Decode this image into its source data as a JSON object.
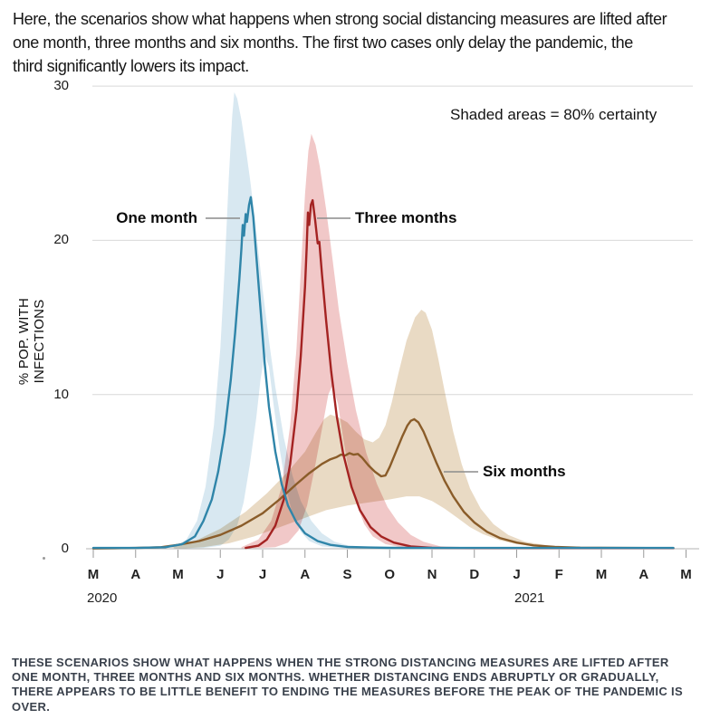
{
  "header": {
    "intro_lines": [
      "Here, the scenarios show what happens when strong social distancing measures are lifted after",
      "one month, three months and six months. The first two cases only delay the pandemic, the",
      "third significantly lowers its impact."
    ]
  },
  "chart_data": {
    "type": "line",
    "title": "",
    "xlabel": "",
    "ylabel": "% POP. WITH INFECTIONS",
    "note": "Shaded areas = 80% certainty",
    "grid": "horizontal",
    "legend": "inline-annotations",
    "ylim": [
      0,
      30
    ],
    "yticks": [
      0,
      10,
      20,
      30
    ],
    "x_unit": "months since March 2020",
    "x_axis": {
      "months": [
        "M",
        "A",
        "M",
        "J",
        "J",
        "A",
        "S",
        "O",
        "N",
        "D",
        "J",
        "F",
        "M",
        "A",
        "M"
      ],
      "years": [
        {
          "label": "2020",
          "month_index": 0
        },
        {
          "label": "2021",
          "month_index": 10
        }
      ]
    },
    "series": [
      {
        "id": "one-month",
        "label": "One month",
        "color": "#2f85a9",
        "fill": "#d8e8f1",
        "peak": {
          "x": 3.72,
          "y": 22.8
        },
        "line": [
          [
            0,
            0.05
          ],
          [
            1,
            0.05
          ],
          [
            1.7,
            0.1
          ],
          [
            2.1,
            0.3
          ],
          [
            2.4,
            0.8
          ],
          [
            2.6,
            1.8
          ],
          [
            2.8,
            3.2
          ],
          [
            2.95,
            5
          ],
          [
            3.1,
            7.5
          ],
          [
            3.25,
            11
          ],
          [
            3.35,
            14
          ],
          [
            3.45,
            17.5
          ],
          [
            3.5,
            19.5
          ],
          [
            3.53,
            21
          ],
          [
            3.56,
            20.3
          ],
          [
            3.6,
            21.7
          ],
          [
            3.63,
            21.2
          ],
          [
            3.68,
            22.3
          ],
          [
            3.72,
            22.8
          ],
          [
            3.78,
            21.5
          ],
          [
            3.85,
            19
          ],
          [
            3.95,
            15.5
          ],
          [
            4.05,
            12
          ],
          [
            4.15,
            9.2
          ],
          [
            4.3,
            6.3
          ],
          [
            4.45,
            4.2
          ],
          [
            4.6,
            2.8
          ],
          [
            4.8,
            1.7
          ],
          [
            5,
            1
          ],
          [
            5.3,
            0.5
          ],
          [
            5.6,
            0.25
          ],
          [
            6,
            0.12
          ],
          [
            6.5,
            0.08
          ],
          [
            7,
            0.06
          ],
          [
            9,
            0.05
          ],
          [
            11,
            0.05
          ],
          [
            13.7,
            0.05
          ]
        ],
        "band_upper": [
          [
            1.9,
            0.1
          ],
          [
            2.2,
            0.6
          ],
          [
            2.45,
            1.8
          ],
          [
            2.65,
            4
          ],
          [
            2.85,
            8
          ],
          [
            3,
            13
          ],
          [
            3.1,
            18
          ],
          [
            3.2,
            24
          ],
          [
            3.28,
            28
          ],
          [
            3.33,
            29.6
          ],
          [
            3.4,
            29.2
          ],
          [
            3.5,
            27.8
          ],
          [
            3.6,
            26
          ],
          [
            3.7,
            24
          ],
          [
            3.8,
            21.8
          ],
          [
            3.9,
            19.3
          ],
          [
            4,
            16.8
          ],
          [
            4.15,
            13.5
          ],
          [
            4.3,
            10.5
          ],
          [
            4.5,
            7.2
          ],
          [
            4.7,
            4.8
          ],
          [
            4.9,
            3.1
          ],
          [
            5.15,
            1.8
          ],
          [
            5.4,
            1
          ],
          [
            5.7,
            0.45
          ],
          [
            6.1,
            0.15
          ],
          [
            6.5,
            0.05
          ]
        ],
        "band_lower": [
          [
            1.9,
            0
          ],
          [
            2.6,
            0.05
          ],
          [
            3,
            0.2
          ],
          [
            3.2,
            0.6
          ],
          [
            3.4,
            1.5
          ],
          [
            3.55,
            3
          ],
          [
            3.7,
            5.5
          ],
          [
            3.85,
            8.5
          ],
          [
            3.95,
            11
          ],
          [
            4.05,
            12.6
          ],
          [
            4.15,
            11.8
          ],
          [
            4.25,
            9.5
          ],
          [
            4.4,
            6.5
          ],
          [
            4.55,
            4
          ],
          [
            4.7,
            2.3
          ],
          [
            4.9,
            1.1
          ],
          [
            5.1,
            0.5
          ],
          [
            5.4,
            0.15
          ],
          [
            6,
            0.02
          ],
          [
            6.5,
            0
          ]
        ]
      },
      {
        "id": "three-months",
        "label": "Three months",
        "color": "#a42322",
        "fill": "#f1c8c8",
        "peak": {
          "x": 5.18,
          "y": 22.6
        },
        "line": [
          [
            3.6,
            0.05
          ],
          [
            3.9,
            0.2
          ],
          [
            4.1,
            0.6
          ],
          [
            4.3,
            1.5
          ],
          [
            4.5,
            3.2
          ],
          [
            4.65,
            5.5
          ],
          [
            4.8,
            9
          ],
          [
            4.9,
            12.5
          ],
          [
            5,
            17
          ],
          [
            5.04,
            19.5
          ],
          [
            5.07,
            21.8
          ],
          [
            5.1,
            21
          ],
          [
            5.14,
            22.3
          ],
          [
            5.18,
            22.6
          ],
          [
            5.24,
            21.3
          ],
          [
            5.3,
            19.8
          ],
          [
            5.34,
            19.9
          ],
          [
            5.4,
            17.8
          ],
          [
            5.5,
            14.8
          ],
          [
            5.62,
            11.5
          ],
          [
            5.75,
            8.6
          ],
          [
            5.9,
            6.2
          ],
          [
            6.1,
            4
          ],
          [
            6.3,
            2.5
          ],
          [
            6.55,
            1.4
          ],
          [
            6.8,
            0.8
          ],
          [
            7.1,
            0.4
          ],
          [
            7.5,
            0.15
          ],
          [
            8,
            0.06
          ],
          [
            9,
            0.04
          ],
          [
            13.7,
            0.04
          ]
        ],
        "band_upper": [
          [
            3.5,
            0.1
          ],
          [
            3.9,
            0.6
          ],
          [
            4.2,
            1.8
          ],
          [
            4.45,
            4
          ],
          [
            4.65,
            8
          ],
          [
            4.8,
            13
          ],
          [
            4.9,
            18
          ],
          [
            5,
            23
          ],
          [
            5.08,
            25.8
          ],
          [
            5.15,
            26.9
          ],
          [
            5.25,
            26.2
          ],
          [
            5.35,
            24.8
          ],
          [
            5.5,
            22
          ],
          [
            5.65,
            18.8
          ],
          [
            5.8,
            15.5
          ],
          [
            6,
            12
          ],
          [
            6.2,
            9
          ],
          [
            6.45,
            6.2
          ],
          [
            6.7,
            4.2
          ],
          [
            6.95,
            2.7
          ],
          [
            7.2,
            1.7
          ],
          [
            7.5,
            0.9
          ],
          [
            7.8,
            0.45
          ],
          [
            8.2,
            0.15
          ],
          [
            8.6,
            0.05
          ]
        ],
        "band_lower": [
          [
            3.5,
            0
          ],
          [
            4.3,
            0.1
          ],
          [
            4.6,
            0.4
          ],
          [
            4.85,
            1.2
          ],
          [
            5.05,
            2.8
          ],
          [
            5.25,
            5.5
          ],
          [
            5.45,
            8.5
          ],
          [
            5.55,
            10
          ],
          [
            5.65,
            10.6
          ],
          [
            5.78,
            9.4
          ],
          [
            5.9,
            7.2
          ],
          [
            6.05,
            4.8
          ],
          [
            6.2,
            3
          ],
          [
            6.4,
            1.6
          ],
          [
            6.6,
            0.8
          ],
          [
            6.9,
            0.3
          ],
          [
            7.3,
            0.08
          ],
          [
            7.8,
            0
          ]
        ]
      },
      {
        "id": "six-months",
        "label": "Six months",
        "color": "#8a5c29",
        "fill": "#e9dac4",
        "peak": {
          "x": 7.58,
          "y": 8.4
        },
        "line": [
          [
            0,
            0.02
          ],
          [
            1,
            0.05
          ],
          [
            1.6,
            0.1
          ],
          [
            2,
            0.25
          ],
          [
            2.5,
            0.5
          ],
          [
            3,
            0.9
          ],
          [
            3.5,
            1.5
          ],
          [
            4,
            2.3
          ],
          [
            4.4,
            3.2
          ],
          [
            4.8,
            4.2
          ],
          [
            5.1,
            4.9
          ],
          [
            5.4,
            5.5
          ],
          [
            5.6,
            5.8
          ],
          [
            5.75,
            5.95
          ],
          [
            5.85,
            6.1
          ],
          [
            5.95,
            6.05
          ],
          [
            6.05,
            6.2
          ],
          [
            6.15,
            6.1
          ],
          [
            6.25,
            6.15
          ],
          [
            6.35,
            5.9
          ],
          [
            6.5,
            5.4
          ],
          [
            6.65,
            5
          ],
          [
            6.8,
            4.7
          ],
          [
            6.9,
            4.75
          ],
          [
            7,
            5.3
          ],
          [
            7.15,
            6.3
          ],
          [
            7.3,
            7.3
          ],
          [
            7.42,
            8
          ],
          [
            7.5,
            8.3
          ],
          [
            7.58,
            8.4
          ],
          [
            7.68,
            8.2
          ],
          [
            7.8,
            7.6
          ],
          [
            7.95,
            6.6
          ],
          [
            8.1,
            5.6
          ],
          [
            8.3,
            4.4
          ],
          [
            8.5,
            3.4
          ],
          [
            8.75,
            2.4
          ],
          [
            9,
            1.7
          ],
          [
            9.3,
            1.1
          ],
          [
            9.6,
            0.7
          ],
          [
            10,
            0.4
          ],
          [
            10.4,
            0.22
          ],
          [
            10.9,
            0.12
          ],
          [
            11.5,
            0.07
          ],
          [
            12.5,
            0.05
          ],
          [
            13.7,
            0.04
          ]
        ],
        "band_upper": [
          [
            1.8,
            0.1
          ],
          [
            2.4,
            0.5
          ],
          [
            3,
            1.3
          ],
          [
            3.6,
            2.4
          ],
          [
            4.1,
            3.6
          ],
          [
            4.6,
            5
          ],
          [
            5,
            6.3
          ],
          [
            5.25,
            7.5
          ],
          [
            5.45,
            8.4
          ],
          [
            5.6,
            8.7
          ],
          [
            5.8,
            8.5
          ],
          [
            6,
            8.2
          ],
          [
            6.2,
            7.6
          ],
          [
            6.4,
            7.1
          ],
          [
            6.6,
            6.9
          ],
          [
            6.75,
            7.2
          ],
          [
            6.9,
            8
          ],
          [
            7.05,
            9.5
          ],
          [
            7.2,
            11.3
          ],
          [
            7.4,
            13.5
          ],
          [
            7.6,
            15
          ],
          [
            7.75,
            15.5
          ],
          [
            7.85,
            15.3
          ],
          [
            8,
            14.2
          ],
          [
            8.15,
            12.3
          ],
          [
            8.3,
            10.2
          ],
          [
            8.5,
            7.6
          ],
          [
            8.7,
            5.5
          ],
          [
            8.9,
            3.9
          ],
          [
            9.15,
            2.6
          ],
          [
            9.45,
            1.6
          ],
          [
            9.8,
            0.9
          ],
          [
            10.2,
            0.45
          ],
          [
            10.8,
            0.18
          ],
          [
            11.5,
            0.06
          ]
        ],
        "band_lower": [
          [
            2,
            0
          ],
          [
            2.6,
            0.1
          ],
          [
            3.2,
            0.35
          ],
          [
            3.8,
            0.8
          ],
          [
            4.4,
            1.4
          ],
          [
            5,
            2
          ],
          [
            5.5,
            2.5
          ],
          [
            6,
            2.8
          ],
          [
            6.5,
            3
          ],
          [
            7,
            3.2
          ],
          [
            7.4,
            3.4
          ],
          [
            7.7,
            3.4
          ],
          [
            8,
            3.1
          ],
          [
            8.3,
            2.6
          ],
          [
            8.6,
            2
          ],
          [
            8.9,
            1.4
          ],
          [
            9.2,
            0.95
          ],
          [
            9.6,
            0.55
          ],
          [
            10,
            0.3
          ],
          [
            10.5,
            0.14
          ],
          [
            11.2,
            0.05
          ],
          [
            12,
            0
          ]
        ]
      }
    ]
  },
  "caption": {
    "lines": [
      "THESE SCENARIOS SHOW WHAT HAPPENS WHEN THE STRONG DISTANCING MEASURES ARE LIFTED AFTER",
      "ONE MONTH, THREE MONTHS AND SIX MONTHS. WHETHER DISTANCING ENDS ABRUPTLY OR GRADUALLY,",
      "THERE APPEARS TO BE LITTLE BENEFIT TO ENDING THE MEASURES BEFORE THE PEAK OF THE PANDEMIC IS",
      "OVER."
    ]
  }
}
